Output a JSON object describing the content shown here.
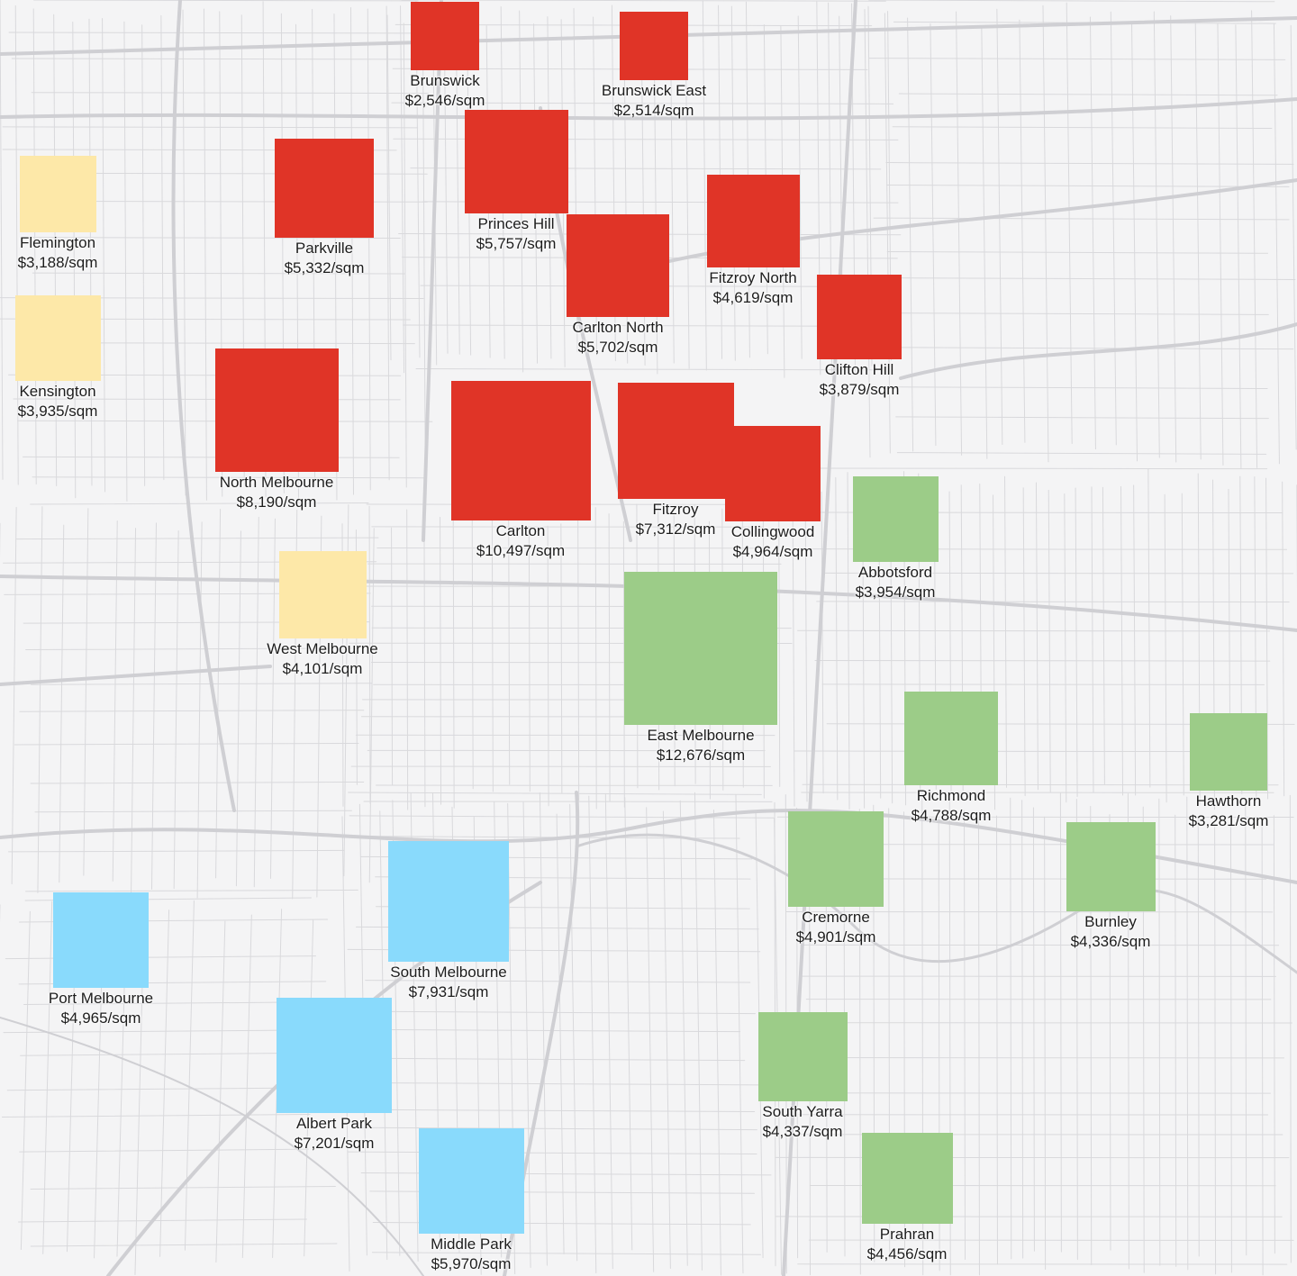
{
  "colors": {
    "background": "#f4f4f5",
    "road": "#d9d9dc",
    "major_road": "#cfcfd3",
    "north": "#e03427",
    "west": "#fde8a8",
    "east": "#9ccc88",
    "south": "#89dafc"
  },
  "unit_suffix": "/sqm",
  "suburbs": [
    {
      "name": "Brunswick",
      "price": "$2,546/sqm",
      "value": 2546,
      "group": "north"
    },
    {
      "name": "Brunswick East",
      "price": "$2,514/sqm",
      "value": 2514,
      "group": "north"
    },
    {
      "name": "Flemington",
      "price": "$3,188/sqm",
      "value": 3188,
      "group": "west"
    },
    {
      "name": "Parkville",
      "price": "$5,332/sqm",
      "value": 5332,
      "group": "north"
    },
    {
      "name": "Princes Hill",
      "price": "$5,757/sqm",
      "value": 5757,
      "group": "north"
    },
    {
      "name": "Fitzroy North",
      "price": "$4,619/sqm",
      "value": 4619,
      "group": "north"
    },
    {
      "name": "Carlton North",
      "price": "$5,702/sqm",
      "value": 5702,
      "group": "north"
    },
    {
      "name": "Clifton Hill",
      "price": "$3,879/sqm",
      "value": 3879,
      "group": "north"
    },
    {
      "name": "Kensington",
      "price": "$3,935/sqm",
      "value": 3935,
      "group": "west"
    },
    {
      "name": "North Melbourne",
      "price": "$8,190/sqm",
      "value": 8190,
      "group": "north"
    },
    {
      "name": "Carlton",
      "price": "$10,497/sqm",
      "value": 10497,
      "group": "north"
    },
    {
      "name": "Fitzroy",
      "price": "$7,312/sqm",
      "value": 7312,
      "group": "north"
    },
    {
      "name": "Collingwood",
      "price": "$4,964/sqm",
      "value": 4964,
      "group": "north"
    },
    {
      "name": "Abbotsford",
      "price": "$3,954/sqm",
      "value": 3954,
      "group": "east"
    },
    {
      "name": "West Melbourne",
      "price": "$4,101/sqm",
      "value": 4101,
      "group": "west"
    },
    {
      "name": "East Melbourne",
      "price": "$12,676/sqm",
      "value": 12676,
      "group": "east"
    },
    {
      "name": "Richmond",
      "price": "$4,788/sqm",
      "value": 4788,
      "group": "east"
    },
    {
      "name": "Hawthorn",
      "price": "$3,281/sqm",
      "value": 3281,
      "group": "east"
    },
    {
      "name": "Cremorne",
      "price": "$4,901/sqm",
      "value": 4901,
      "group": "east"
    },
    {
      "name": "Burnley",
      "price": "$4,336/sqm",
      "value": 4336,
      "group": "east"
    },
    {
      "name": "Port Melbourne",
      "price": "$4,965/sqm",
      "value": 4965,
      "group": "south"
    },
    {
      "name": "South Melbourne",
      "price": "$7,931/sqm",
      "value": 7931,
      "group": "south"
    },
    {
      "name": "Albert Park",
      "price": "$7,201/sqm",
      "value": 7201,
      "group": "south"
    },
    {
      "name": "South Yarra",
      "price": "$4,337/sqm",
      "value": 4337,
      "group": "east"
    },
    {
      "name": "Middle Park",
      "price": "$5,970/sqm",
      "value": 5970,
      "group": "south"
    },
    {
      "name": "Prahran",
      "price": "$4,456/sqm",
      "value": 4456,
      "group": "east"
    }
  ]
}
